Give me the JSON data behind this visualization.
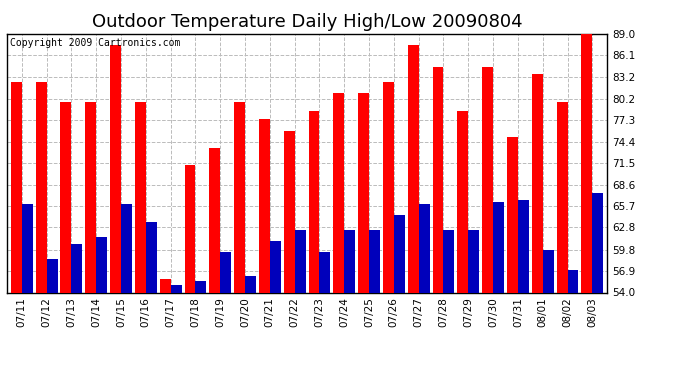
{
  "title": "Outdoor Temperature Daily High/Low 20090804",
  "copyright": "Copyright 2009 Cartronics.com",
  "dates": [
    "07/11",
    "07/12",
    "07/13",
    "07/14",
    "07/15",
    "07/16",
    "07/17",
    "07/18",
    "07/19",
    "07/20",
    "07/21",
    "07/22",
    "07/23",
    "07/24",
    "07/25",
    "07/26",
    "07/27",
    "07/28",
    "07/29",
    "07/30",
    "07/31",
    "08/01",
    "08/02",
    "08/03"
  ],
  "highs": [
    82.5,
    82.5,
    79.8,
    79.8,
    87.5,
    79.8,
    55.8,
    71.3,
    73.5,
    79.8,
    77.5,
    75.8,
    78.5,
    81.0,
    81.0,
    82.5,
    87.5,
    84.5,
    78.5,
    84.5,
    75.0,
    83.5,
    79.8,
    89.0
  ],
  "lows": [
    66.0,
    58.5,
    60.5,
    61.5,
    66.0,
    63.5,
    55.0,
    55.5,
    59.5,
    56.2,
    61.0,
    62.5,
    59.5,
    62.5,
    62.5,
    64.5,
    66.0,
    62.5,
    62.5,
    66.2,
    66.5,
    59.8,
    57.0,
    67.5
  ],
  "high_color": "#ff0000",
  "low_color": "#0000bb",
  "bar_width": 0.44,
  "ylim": [
    54.0,
    89.0
  ],
  "yticks": [
    54.0,
    56.9,
    59.8,
    62.8,
    65.7,
    68.6,
    71.5,
    74.4,
    77.3,
    80.2,
    83.2,
    86.1,
    89.0
  ],
  "background_color": "#ffffff",
  "plot_background": "#ffffff",
  "grid_color": "#bbbbbb",
  "title_fontsize": 13,
  "tick_fontsize": 7.5,
  "copyright_fontsize": 7
}
